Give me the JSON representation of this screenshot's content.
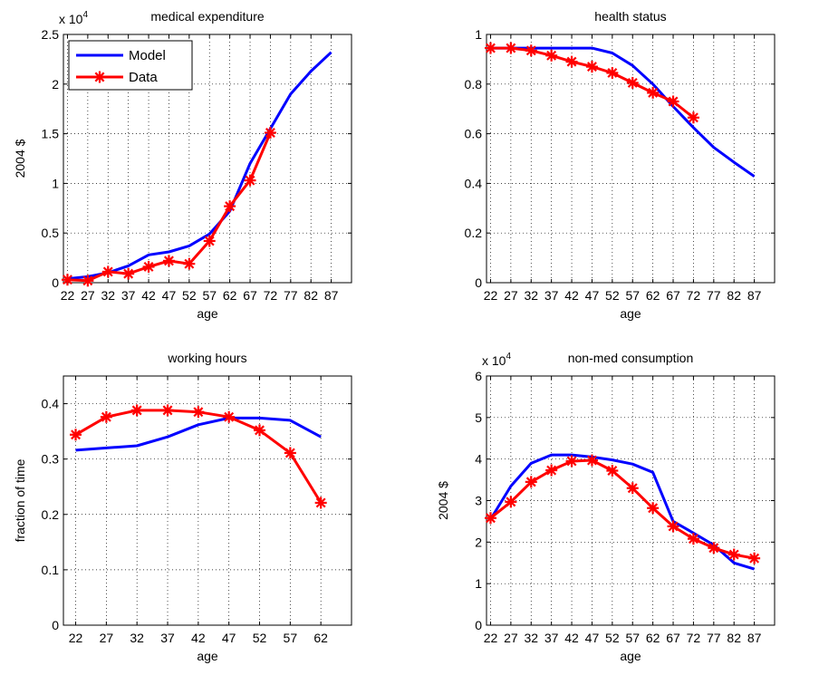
{
  "chart_data": [
    {
      "type": "line",
      "title": "medical expenditure",
      "xlabel": "age",
      "ylabel": "2004 $",
      "exponent_label": "x 10",
      "exponent_power": "4",
      "xlim": [
        21,
        92
      ],
      "ylim": [
        0,
        2.5
      ],
      "x_ticks": [
        22,
        27,
        32,
        37,
        42,
        47,
        52,
        57,
        62,
        67,
        72,
        77,
        82,
        87
      ],
      "x_tick_labels": [
        "22",
        "27",
        "32",
        "37",
        "42",
        "47",
        "52",
        "57",
        "62",
        "67",
        "72",
        "77",
        "82",
        "87"
      ],
      "y_ticks": [
        0,
        0.5,
        1,
        1.5,
        2,
        2.5
      ],
      "y_tick_labels": [
        "0",
        "0.5",
        "1",
        "1.5",
        "2",
        "2.5"
      ],
      "grid": true,
      "legend": "top-left",
      "series": [
        {
          "name": "Model",
          "color": "#0000ff",
          "marker": "none",
          "x": [
            22,
            27,
            32,
            37,
            42,
            47,
            52,
            57,
            62,
            67,
            72,
            77,
            82,
            87
          ],
          "y": [
            0.04,
            0.06,
            0.1,
            0.17,
            0.28,
            0.31,
            0.37,
            0.49,
            0.72,
            1.2,
            1.55,
            1.9,
            2.13,
            2.32
          ]
        },
        {
          "name": "Data",
          "color": "#ff0000",
          "marker": "star",
          "x": [
            22,
            27,
            32,
            37,
            42,
            47,
            52,
            57,
            62,
            67,
            72
          ],
          "y": [
            0.03,
            0.02,
            0.11,
            0.09,
            0.16,
            0.22,
            0.19,
            0.42,
            0.77,
            1.03,
            1.51
          ]
        }
      ]
    },
    {
      "type": "line",
      "title": "health status",
      "xlabel": "age",
      "ylabel": "",
      "xlim": [
        21,
        92
      ],
      "ylim": [
        0,
        1
      ],
      "x_ticks": [
        22,
        27,
        32,
        37,
        42,
        47,
        52,
        57,
        62,
        67,
        72,
        77,
        82,
        87
      ],
      "x_tick_labels": [
        "22",
        "27",
        "32",
        "37",
        "42",
        "47",
        "52",
        "57",
        "62",
        "67",
        "72",
        "77",
        "82",
        "87"
      ],
      "y_ticks": [
        0,
        0.2,
        0.4,
        0.6,
        0.8,
        1
      ],
      "y_tick_labels": [
        "0",
        "0.2",
        "0.4",
        "0.6",
        "0.8",
        "1"
      ],
      "grid": true,
      "series": [
        {
          "name": "Model",
          "color": "#0000ff",
          "marker": "none",
          "x": [
            22,
            27,
            32,
            37,
            42,
            47,
            52,
            57,
            62,
            67,
            72,
            77,
            82,
            87
          ],
          "y": [
            0.945,
            0.945,
            0.945,
            0.945,
            0.945,
            0.945,
            0.925,
            0.875,
            0.8,
            0.71,
            0.625,
            0.545,
            0.485,
            0.428
          ]
        },
        {
          "name": "Data",
          "color": "#ff0000",
          "marker": "star",
          "x": [
            22,
            27,
            32,
            37,
            42,
            47,
            52,
            57,
            62,
            67,
            72
          ],
          "y": [
            0.945,
            0.945,
            0.935,
            0.915,
            0.89,
            0.87,
            0.845,
            0.805,
            0.765,
            0.73,
            0.665
          ]
        }
      ]
    },
    {
      "type": "line",
      "title": "working hours",
      "xlabel": "age",
      "ylabel": "fraction of time",
      "xlim": [
        20,
        67
      ],
      "ylim": [
        0,
        0.45
      ],
      "x_ticks": [
        22,
        27,
        32,
        37,
        42,
        47,
        52,
        57,
        62
      ],
      "x_tick_labels": [
        "22",
        "27",
        "32",
        "37",
        "42",
        "47",
        "52",
        "57",
        "62"
      ],
      "y_ticks": [
        0,
        0.1,
        0.2,
        0.3,
        0.4
      ],
      "y_tick_labels": [
        "0",
        "0.1",
        "0.2",
        "0.3",
        "0.4"
      ],
      "grid": true,
      "series": [
        {
          "name": "Model",
          "color": "#0000ff",
          "marker": "none",
          "x": [
            22,
            27,
            32,
            37,
            42,
            47,
            52,
            57,
            62
          ],
          "y": [
            0.316,
            0.32,
            0.324,
            0.34,
            0.362,
            0.374,
            0.374,
            0.37,
            0.34
          ]
        },
        {
          "name": "Data",
          "color": "#ff0000",
          "marker": "star",
          "x": [
            22,
            27,
            32,
            37,
            42,
            47,
            52,
            57,
            62
          ],
          "y": [
            0.344,
            0.376,
            0.388,
            0.388,
            0.385,
            0.376,
            0.352,
            0.311,
            0.221
          ]
        }
      ]
    },
    {
      "type": "line",
      "title": "non-med consumption",
      "xlabel": "age",
      "ylabel": "2004 $",
      "exponent_label": "x 10",
      "exponent_power": "4",
      "xlim": [
        21,
        92
      ],
      "ylim": [
        0,
        6
      ],
      "x_ticks": [
        22,
        27,
        32,
        37,
        42,
        47,
        52,
        57,
        62,
        67,
        72,
        77,
        82,
        87
      ],
      "x_tick_labels": [
        "22",
        "27",
        "32",
        "37",
        "42",
        "47",
        "52",
        "57",
        "62",
        "67",
        "72",
        "77",
        "82",
        "87"
      ],
      "y_ticks": [
        0,
        1,
        2,
        3,
        4,
        5,
        6
      ],
      "y_tick_labels": [
        "0",
        "1",
        "2",
        "3",
        "4",
        "5",
        "6"
      ],
      "grid": true,
      "series": [
        {
          "name": "Model",
          "color": "#0000ff",
          "marker": "none",
          "x": [
            22,
            27,
            32,
            37,
            42,
            47,
            52,
            57,
            62,
            67,
            72,
            77,
            82,
            87
          ],
          "y": [
            2.55,
            3.35,
            3.9,
            4.1,
            4.1,
            4.05,
            3.98,
            3.88,
            3.68,
            2.5,
            2.22,
            1.93,
            1.5,
            1.35
          ]
        },
        {
          "name": "Data",
          "color": "#ff0000",
          "marker": "star",
          "x": [
            22,
            27,
            32,
            37,
            42,
            47,
            52,
            57,
            62,
            67,
            72,
            77,
            82,
            87
          ],
          "y": [
            2.58,
            2.97,
            3.45,
            3.73,
            3.95,
            3.97,
            3.72,
            3.3,
            2.82,
            2.38,
            2.08,
            1.86,
            1.7,
            1.61
          ]
        }
      ]
    }
  ]
}
